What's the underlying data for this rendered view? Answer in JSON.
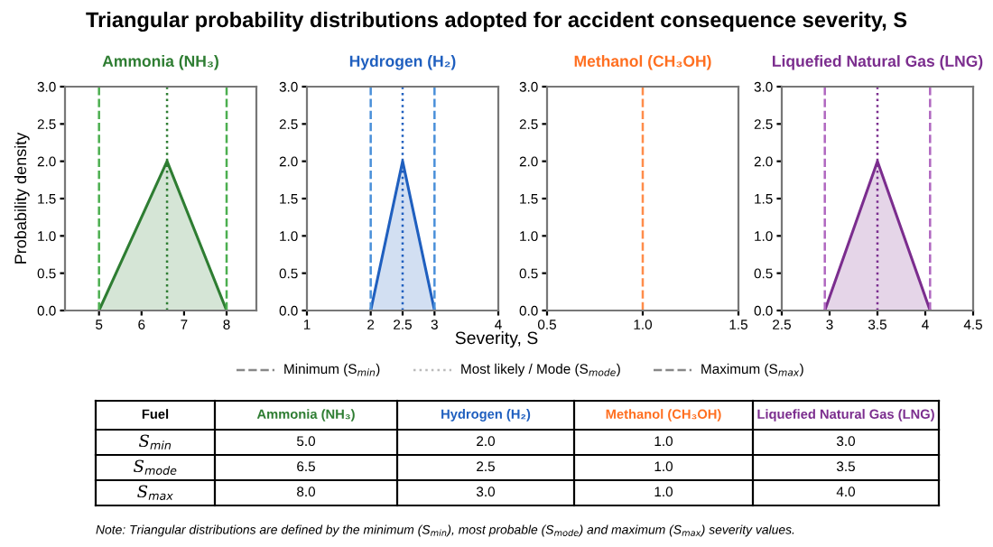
{
  "chart_data": [
    {
      "type": "area",
      "title": "Ammonia (NH₃)",
      "ylabel": "Probability density",
      "color": "#2e7d32",
      "series": [
        {
          "color": "#2e7d32",
          "x": [
            5,
            6.6,
            8
          ],
          "values": [
            0,
            2,
            0
          ]
        }
      ],
      "ref_lines": [
        {
          "axis": "x",
          "value": 5,
          "line_style": "dashed",
          "color": "#4caf50"
        },
        {
          "axis": "x",
          "value": 6.6,
          "line_style": "dotted",
          "color": "#2e7d32"
        },
        {
          "axis": "x",
          "value": 8,
          "line_style": "dashed",
          "color": "#4caf50"
        }
      ],
      "xlim": [
        4.2,
        8.7
      ],
      "xticks": [
        5,
        6,
        7,
        8
      ],
      "ylim": [
        0,
        3
      ],
      "yticks": [
        {
          "value": 0,
          "label": "0.0"
        },
        {
          "value": 0.5,
          "label": "0.5"
        },
        {
          "value": 1,
          "label": "1.0"
        },
        {
          "value": 1.5,
          "label": "1.5"
        },
        {
          "value": 2,
          "label": "2.0"
        },
        {
          "value": 2.5,
          "label": "2.5"
        },
        {
          "value": 3,
          "label": "3.0"
        }
      ]
    },
    {
      "type": "area",
      "title": "Hydrogen (H₂)",
      "color": "#1f5fbf",
      "series": [
        {
          "color": "#1f5fbf",
          "x": [
            2,
            2.5,
            3
          ],
          "values": [
            0,
            2,
            0
          ]
        }
      ],
      "ref_lines": [
        {
          "axis": "x",
          "value": 2,
          "line_style": "dashed",
          "color": "#4a90d9"
        },
        {
          "axis": "x",
          "value": 2.5,
          "line_style": "dotted",
          "color": "#1f5fbf"
        },
        {
          "axis": "x",
          "value": 3,
          "line_style": "dashed",
          "color": "#4a90d9"
        }
      ],
      "xlim": [
        1,
        4
      ],
      "xticks": [
        1,
        2,
        2.5,
        3,
        4
      ],
      "ylim": [
        0,
        3
      ],
      "yticks": [
        {
          "value": 0,
          "label": "0.0"
        },
        {
          "value": 0.5,
          "label": "0.5"
        },
        {
          "value": 1,
          "label": "1.0"
        },
        {
          "value": 1.5,
          "label": "1.5"
        },
        {
          "value": 2,
          "label": "2.0"
        },
        {
          "value": 2.5,
          "label": "2.5"
        },
        {
          "value": 3,
          "label": "3.0"
        }
      ]
    },
    {
      "type": "area",
      "title": "Methanol (CH₃OH)",
      "color": "#ff6f20",
      "ref_lines": [
        {
          "axis": "x",
          "value": 1,
          "line_style": "dashed",
          "color": "#ff8c4a"
        }
      ],
      "xlim": [
        0.5,
        1.5
      ],
      "xticks": [
        0.5,
        {
          "value": 1,
          "label": "1.0"
        },
        1.5
      ],
      "ylim": [
        0,
        3
      ],
      "yticks": [
        {
          "value": 0,
          "label": "0.0"
        },
        {
          "value": 0.5,
          "label": "0.5"
        },
        {
          "value": 1,
          "label": "1.0"
        },
        {
          "value": 1.5,
          "label": "1.5"
        },
        {
          "value": 2,
          "label": "2.0"
        },
        {
          "value": 2.5,
          "label": "2.5"
        },
        {
          "value": 3,
          "label": "3.0"
        }
      ]
    },
    {
      "type": "area",
      "title": "Liquefied Natural Gas (LNG)",
      "color": "#7b2d8e",
      "series": [
        {
          "color": "#7b2d8e",
          "x": [
            2.95,
            3.5,
            4.05
          ],
          "values": [
            0,
            2,
            0
          ]
        }
      ],
      "ref_lines": [
        {
          "axis": "x",
          "value": 2.95,
          "line_style": "dashed",
          "color": "#b067c0"
        },
        {
          "axis": "x",
          "value": 3.5,
          "line_style": "dotted",
          "color": "#7b2d8e"
        },
        {
          "axis": "x",
          "value": 4.05,
          "line_style": "dashed",
          "color": "#b067c0"
        }
      ],
      "xlim": [
        2.5,
        4.5
      ],
      "xticks": [
        2.5,
        3,
        3.5,
        4,
        4.5
      ],
      "ylim": [
        0,
        3
      ],
      "yticks": [
        {
          "value": 0,
          "label": "0.0"
        },
        {
          "value": 0.5,
          "label": "0.5"
        },
        {
          "value": 1,
          "label": "1.0"
        },
        {
          "value": 1.5,
          "label": "1.5"
        },
        {
          "value": 2,
          "label": "2.0"
        },
        {
          "value": 2.5,
          "label": "2.5"
        },
        {
          "value": 3,
          "label": "3.0"
        }
      ]
    },
    {
      "type": "other",
      "title": "Triangular probability distributions adopted for accident consequence severity, S",
      "xlabel": "Severity, S",
      "categories": [
        "Fuel",
        "Ammonia (NH₃)",
        "Hydrogen (H₂)",
        "Methanol (CH₃OH)",
        "Liquefied Natural Gas (LNG)"
      ],
      "colors": [
        "#000000",
        "#2e7d32",
        "#1f5fbf",
        "#ff6f20",
        "#7b2d8e"
      ],
      "y_categories": [
        "S$_{min}$",
        "S$_{mode}$",
        "S$_{max}$"
      ],
      "cell_labels": [
        [
          "5.0",
          "2.0",
          "1.0",
          "3.0"
        ],
        [
          "6.5",
          "2.5",
          "1.0",
          "3.5"
        ],
        [
          "8.0",
          "3.0",
          "1.0",
          "4.0"
        ]
      ],
      "annotations": [
        "Minimum (S$_{min}$)",
        "Most likely / Mode (S$_{mode}$)",
        "Maximum (S$_{max}$)",
        "Note: Triangular distributions are defined by the minimum (S$_{min}$), most probable (S$_{mode}$) and maximum (S$_{max}$) severity values."
      ]
    }
  ]
}
